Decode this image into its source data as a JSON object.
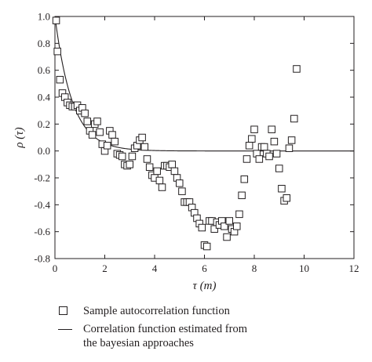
{
  "chart_data": {
    "type": "scatter",
    "xlabel": "τ (m)",
    "ylabel": "ρ (τ)",
    "xlim": [
      0,
      12
    ],
    "ylim": [
      -0.8,
      1.0
    ],
    "xticks": [
      0,
      2,
      4,
      6,
      8,
      10,
      12
    ],
    "yticks": [
      1.0,
      0.8,
      0.6,
      0.4,
      0.2,
      0.0,
      -0.2,
      -0.4,
      -0.6,
      -0.8
    ],
    "grid": false,
    "legend_position": "below",
    "series": [
      {
        "name": "Sample autocorrelation function",
        "kind": "markers",
        "marker": "open-square",
        "points": [
          [
            0.05,
            0.97
          ],
          [
            0.1,
            0.74
          ],
          [
            0.2,
            0.53
          ],
          [
            0.3,
            0.43
          ],
          [
            0.4,
            0.4
          ],
          [
            0.5,
            0.36
          ],
          [
            0.6,
            0.34
          ],
          [
            0.7,
            0.33
          ],
          [
            0.8,
            0.33
          ],
          [
            0.9,
            0.34
          ],
          [
            1.0,
            0.3
          ],
          [
            1.1,
            0.32
          ],
          [
            1.2,
            0.28
          ],
          [
            1.3,
            0.22
          ],
          [
            1.4,
            0.15
          ],
          [
            1.5,
            0.12
          ],
          [
            1.6,
            0.2
          ],
          [
            1.7,
            0.22
          ],
          [
            1.8,
            0.14
          ],
          [
            1.9,
            0.05
          ],
          [
            2.0,
            0.0
          ],
          [
            2.1,
            0.04
          ],
          [
            2.2,
            0.15
          ],
          [
            2.3,
            0.12
          ],
          [
            2.4,
            0.07
          ],
          [
            2.5,
            -0.02
          ],
          [
            2.6,
            -0.03
          ],
          [
            2.7,
            -0.04
          ],
          [
            2.8,
            -0.1
          ],
          [
            2.9,
            -0.11
          ],
          [
            3.0,
            -0.1
          ],
          [
            3.1,
            -0.04
          ],
          [
            3.2,
            0.02
          ],
          [
            3.3,
            0.04
          ],
          [
            3.4,
            0.08
          ],
          [
            3.5,
            0.1
          ],
          [
            3.6,
            0.03
          ],
          [
            3.7,
            -0.06
          ],
          [
            3.8,
            -0.12
          ],
          [
            3.9,
            -0.18
          ],
          [
            4.0,
            -0.2
          ],
          [
            4.1,
            -0.15
          ],
          [
            4.2,
            -0.22
          ],
          [
            4.3,
            -0.27
          ],
          [
            4.4,
            -0.11
          ],
          [
            4.5,
            -0.11
          ],
          [
            4.6,
            -0.12
          ],
          [
            4.7,
            -0.1
          ],
          [
            4.8,
            -0.15
          ],
          [
            4.9,
            -0.2
          ],
          [
            5.0,
            -0.24
          ],
          [
            5.1,
            -0.3
          ],
          [
            5.2,
            -0.38
          ],
          [
            5.3,
            -0.38
          ],
          [
            5.4,
            -0.38
          ],
          [
            5.5,
            -0.42
          ],
          [
            5.6,
            -0.46
          ],
          [
            5.7,
            -0.5
          ],
          [
            5.8,
            -0.54
          ],
          [
            5.9,
            -0.57
          ],
          [
            6.0,
            -0.7
          ],
          [
            6.1,
            -0.71
          ],
          [
            6.2,
            -0.52
          ],
          [
            6.3,
            -0.52
          ],
          [
            6.4,
            -0.58
          ],
          [
            6.5,
            -0.53
          ],
          [
            6.6,
            -0.55
          ],
          [
            6.7,
            -0.52
          ],
          [
            6.8,
            -0.56
          ],
          [
            6.9,
            -0.64
          ],
          [
            7.0,
            -0.52
          ],
          [
            7.1,
            -0.58
          ],
          [
            7.2,
            -0.6
          ],
          [
            7.3,
            -0.56
          ],
          [
            7.4,
            -0.47
          ],
          [
            7.5,
            -0.33
          ],
          [
            7.6,
            -0.21
          ],
          [
            7.7,
            -0.06
          ],
          [
            7.8,
            0.04
          ],
          [
            7.9,
            0.09
          ],
          [
            8.0,
            0.16
          ],
          [
            8.1,
            -0.02
          ],
          [
            8.2,
            -0.06
          ],
          [
            8.3,
            0.03
          ],
          [
            8.4,
            0.03
          ],
          [
            8.5,
            -0.02
          ],
          [
            8.6,
            -0.04
          ],
          [
            8.7,
            0.16
          ],
          [
            8.8,
            0.07
          ],
          [
            8.9,
            -0.02
          ],
          [
            9.0,
            -0.13
          ],
          [
            9.1,
            -0.28
          ],
          [
            9.2,
            -0.37
          ],
          [
            9.3,
            -0.35
          ],
          [
            9.4,
            0.02
          ],
          [
            9.5,
            0.08
          ],
          [
            9.6,
            0.24
          ],
          [
            9.7,
            0.61
          ]
        ]
      },
      {
        "name": "Correlation function estimated from the bayesian approaches",
        "kind": "line",
        "function": "exp(-x/0.7)",
        "sample_x": [
          0,
          0.25,
          0.5,
          0.75,
          1,
          1.5,
          2,
          2.5,
          3,
          4,
          5,
          6,
          8,
          10,
          12
        ],
        "sample_y": [
          1.0,
          0.7,
          0.49,
          0.34,
          0.24,
          0.12,
          0.06,
          0.03,
          0.01,
          0.0,
          0.0,
          0.0,
          0.0,
          0.0,
          0.0
        ]
      }
    ]
  },
  "legend": {
    "items": [
      {
        "label": "Sample autocorrelation function"
      },
      {
        "label_line1": "Correlation function estimated from",
        "label_line2": "the bayesian approaches"
      }
    ]
  }
}
